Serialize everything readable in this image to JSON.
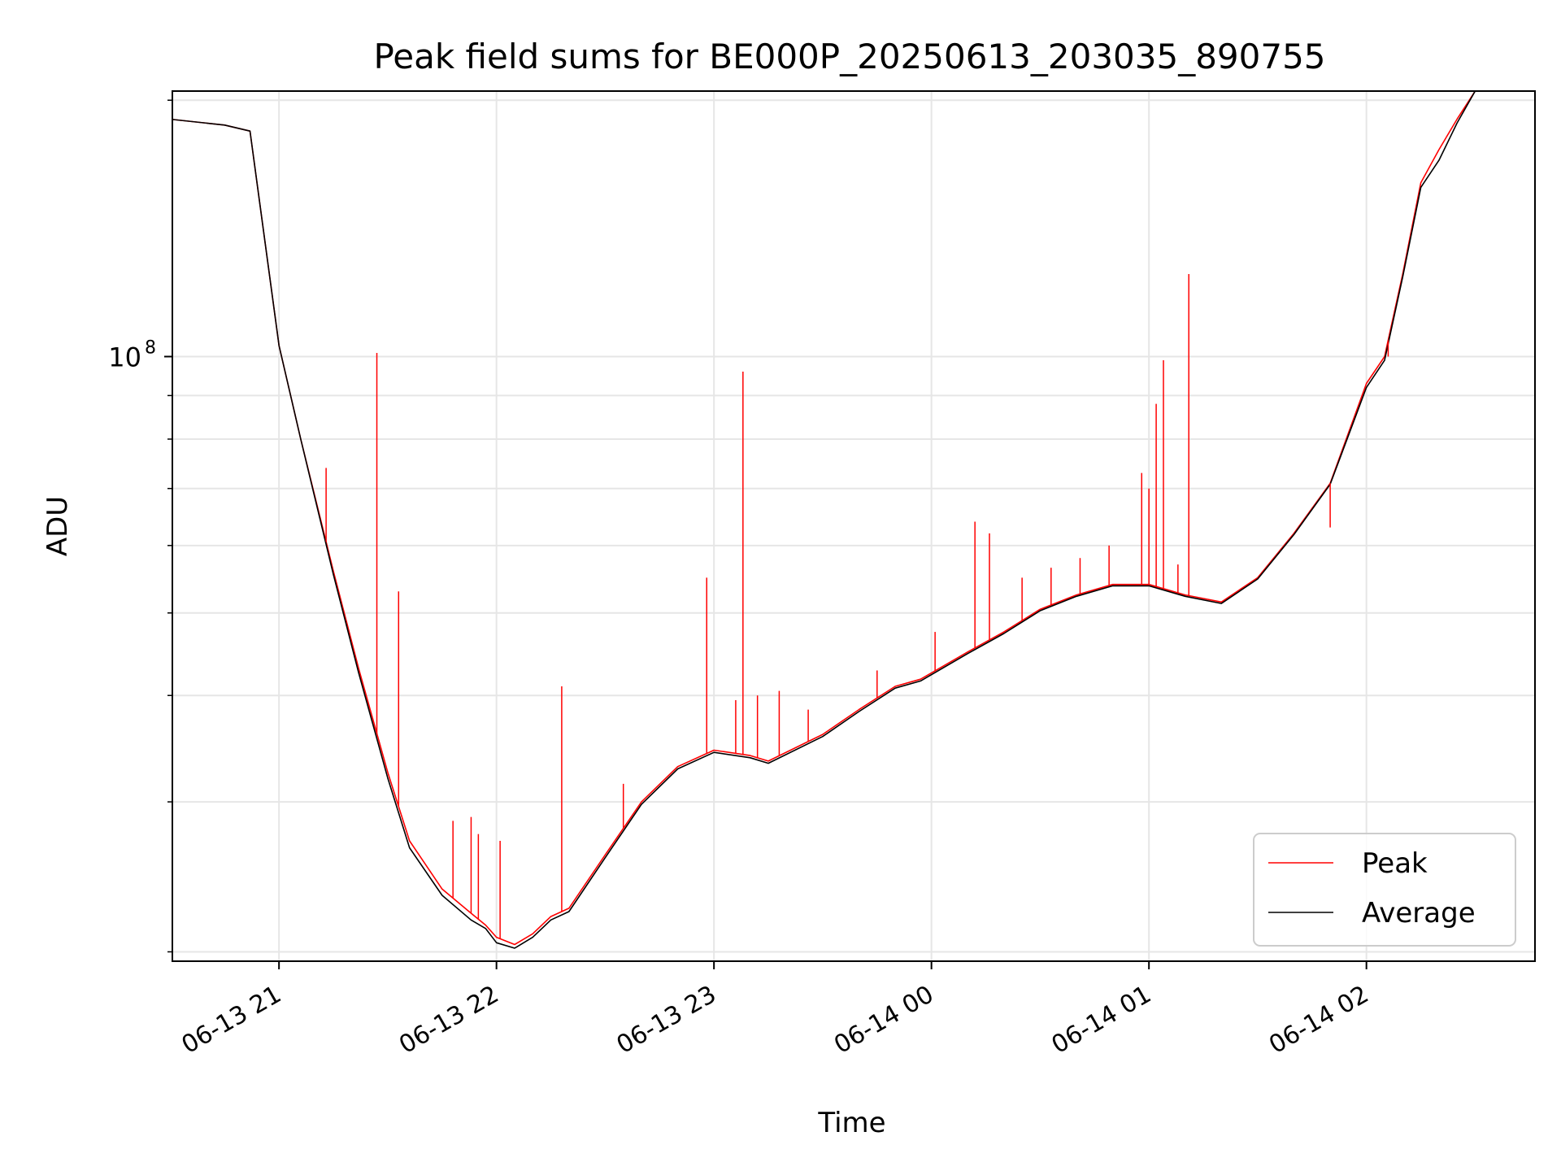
{
  "chart_data": {
    "type": "line",
    "title": "Peak field sums for BE000P_20250613_203035_890755",
    "xlabel": "Time",
    "ylabel": "ADU",
    "yscale": "log",
    "ylim": [
      19500000,
      205000000
    ],
    "xlim": [
      "2025-06-13 20:30:35",
      "2025-06-14 02:46:30"
    ],
    "x_tick_labels": [
      "06-13 21",
      "06-13 22",
      "06-13 23",
      "06-14 00",
      "06-14 01",
      "06-14 02"
    ],
    "x_tick_values": [
      "2025-06-13 21:00",
      "2025-06-13 22:00",
      "2025-06-13 23:00",
      "2025-06-14 00:00",
      "2025-06-14 01:00",
      "2025-06-14 02:00"
    ],
    "y_major_tick_labels": [
      {
        "base": "10",
        "exp": "8"
      }
    ],
    "y_major_tick_values": [
      100000000
    ],
    "y_minor_tick_values": [
      20000000,
      30000000,
      40000000,
      50000000,
      60000000,
      70000000,
      80000000,
      90000000,
      200000000
    ],
    "grid": true,
    "legend_position": "lower right",
    "series": [
      {
        "name": "Peak",
        "color": "#ff0000",
        "x": [
          "2025-06-13 20:30",
          "2025-06-13 20:45",
          "2025-06-13 20:52",
          "2025-06-13 21:00",
          "2025-06-13 21:06",
          "2025-06-13 21:15",
          "2025-06-13 21:22",
          "2025-06-13 21:30",
          "2025-06-13 21:36",
          "2025-06-13 21:45",
          "2025-06-13 21:53",
          "2025-06-13 21:57",
          "2025-06-13 22:00",
          "2025-06-13 22:05",
          "2025-06-13 22:10",
          "2025-06-13 22:15",
          "2025-06-13 22:20",
          "2025-06-13 22:30",
          "2025-06-13 22:40",
          "2025-06-13 22:50",
          "2025-06-13 23:00",
          "2025-06-13 23:10",
          "2025-06-13 23:15",
          "2025-06-13 23:30",
          "2025-06-13 23:40",
          "2025-06-13 23:50",
          "2025-06-13 23:57",
          "2025-06-14 00:10",
          "2025-06-14 00:20",
          "2025-06-14 00:30",
          "2025-06-14 00:40",
          "2025-06-14 00:50",
          "2025-06-14 01:00",
          "2025-06-14 01:10",
          "2025-06-14 01:20",
          "2025-06-14 01:30",
          "2025-06-14 01:40",
          "2025-06-14 01:50",
          "2025-06-14 02:00",
          "2025-06-14 02:05",
          "2025-06-14 02:10",
          "2025-06-14 02:15",
          "2025-06-14 02:20",
          "2025-06-14 02:25",
          "2025-06-14 02:30",
          "2025-06-14 02:35",
          "2025-06-14 02:40",
          "2025-06-14 02:45"
        ],
        "values": [
          190000000,
          187000000,
          184000000,
          103000000,
          80000000,
          56000000,
          43000000,
          32500000,
          27000000,
          23700000,
          22200000,
          21500000,
          20800000,
          20400000,
          21000000,
          22000000,
          22500000,
          26000000,
          30000000,
          33000000,
          34500000,
          34000000,
          33500000,
          36000000,
          38500000,
          41000000,
          41800000,
          45000000,
          47500000,
          50500000,
          52500000,
          54000000,
          54000000,
          52500000,
          51500000,
          55000000,
          62000000,
          71000000,
          93000000,
          100000000,
          125000000,
          160000000,
          175000000,
          190000000,
          205000000,
          205000000,
          205000000,
          205000000
        ],
        "spikes": [
          {
            "x": "2025-06-13 21:13",
            "value": 74000000
          },
          {
            "x": "2025-06-13 21:27",
            "value": 101000000
          },
          {
            "x": "2025-06-13 21:33",
            "value": 53000000
          },
          {
            "x": "2025-06-13 21:48",
            "value": 28500000
          },
          {
            "x": "2025-06-13 21:53",
            "value": 28800000
          },
          {
            "x": "2025-06-13 21:55",
            "value": 27500000
          },
          {
            "x": "2025-06-13 22:01",
            "value": 27000000
          },
          {
            "x": "2025-06-13 22:18",
            "value": 41000000
          },
          {
            "x": "2025-06-13 22:35",
            "value": 31500000
          },
          {
            "x": "2025-06-13 22:58",
            "value": 55000000
          },
          {
            "x": "2025-06-13 23:06",
            "value": 39500000
          },
          {
            "x": "2025-06-13 23:08",
            "value": 96000000
          },
          {
            "x": "2025-06-13 23:12",
            "value": 40000000
          },
          {
            "x": "2025-06-13 23:18",
            "value": 40500000
          },
          {
            "x": "2025-06-13 23:26",
            "value": 38500000
          },
          {
            "x": "2025-06-13 23:45",
            "value": 42800000
          },
          {
            "x": "2025-06-14 00:01",
            "value": 47500000
          },
          {
            "x": "2025-06-14 00:12",
            "value": 64000000
          },
          {
            "x": "2025-06-14 00:16",
            "value": 62000000
          },
          {
            "x": "2025-06-14 00:25",
            "value": 55000000
          },
          {
            "x": "2025-06-14 00:33",
            "value": 56500000
          },
          {
            "x": "2025-06-14 00:41",
            "value": 58000000
          },
          {
            "x": "2025-06-14 00:49",
            "value": 60000000
          },
          {
            "x": "2025-06-14 00:58",
            "value": 73000000
          },
          {
            "x": "2025-06-14 01:00",
            "value": 70000000
          },
          {
            "x": "2025-06-14 01:02",
            "value": 88000000
          },
          {
            "x": "2025-06-14 01:04",
            "value": 99000000
          },
          {
            "x": "2025-06-14 01:08",
            "value": 57000000
          },
          {
            "x": "2025-06-14 01:11",
            "value": 125000000
          },
          {
            "x": "2025-06-14 01:50",
            "value": 63000000
          },
          {
            "x": "2025-06-14 02:06",
            "value": 100000000
          }
        ]
      },
      {
        "name": "Average",
        "color": "#000000",
        "x": [
          "2025-06-13 20:30",
          "2025-06-13 20:45",
          "2025-06-13 20:52",
          "2025-06-13 21:00",
          "2025-06-13 21:06",
          "2025-06-13 21:15",
          "2025-06-13 21:22",
          "2025-06-13 21:30",
          "2025-06-13 21:36",
          "2025-06-13 21:45",
          "2025-06-13 21:53",
          "2025-06-13 21:57",
          "2025-06-13 22:00",
          "2025-06-13 22:05",
          "2025-06-13 22:10",
          "2025-06-13 22:15",
          "2025-06-13 22:20",
          "2025-06-13 22:30",
          "2025-06-13 22:40",
          "2025-06-13 22:50",
          "2025-06-13 23:00",
          "2025-06-13 23:10",
          "2025-06-13 23:15",
          "2025-06-13 23:30",
          "2025-06-13 23:40",
          "2025-06-13 23:50",
          "2025-06-13 23:57",
          "2025-06-14 00:10",
          "2025-06-14 00:20",
          "2025-06-14 00:30",
          "2025-06-14 00:40",
          "2025-06-14 00:50",
          "2025-06-14 01:00",
          "2025-06-14 01:10",
          "2025-06-14 01:20",
          "2025-06-14 01:30",
          "2025-06-14 01:40",
          "2025-06-14 01:50",
          "2025-06-14 02:00",
          "2025-06-14 02:05",
          "2025-06-14 02:10",
          "2025-06-14 02:15",
          "2025-06-14 02:20",
          "2025-06-14 02:25",
          "2025-06-14 02:30",
          "2025-06-14 02:35",
          "2025-06-14 02:40",
          "2025-06-14 02:45"
        ],
        "values": [
          190000000,
          187000000,
          184000000,
          103000000,
          80000000,
          55500000,
          42500000,
          32000000,
          26500000,
          23300000,
          21800000,
          21300000,
          20500000,
          20200000,
          20800000,
          21800000,
          22300000,
          25800000,
          29800000,
          32800000,
          34300000,
          33800000,
          33300000,
          35800000,
          38300000,
          40800000,
          41600000,
          44800000,
          47300000,
          50300000,
          52300000,
          53800000,
          53800000,
          52300000,
          51300000,
          54800000,
          61800000,
          70800000,
          92000000,
          99000000,
          124000000,
          158000000,
          170000000,
          188000000,
          205000000,
          205000000,
          205000000,
          205000000
        ]
      }
    ]
  }
}
